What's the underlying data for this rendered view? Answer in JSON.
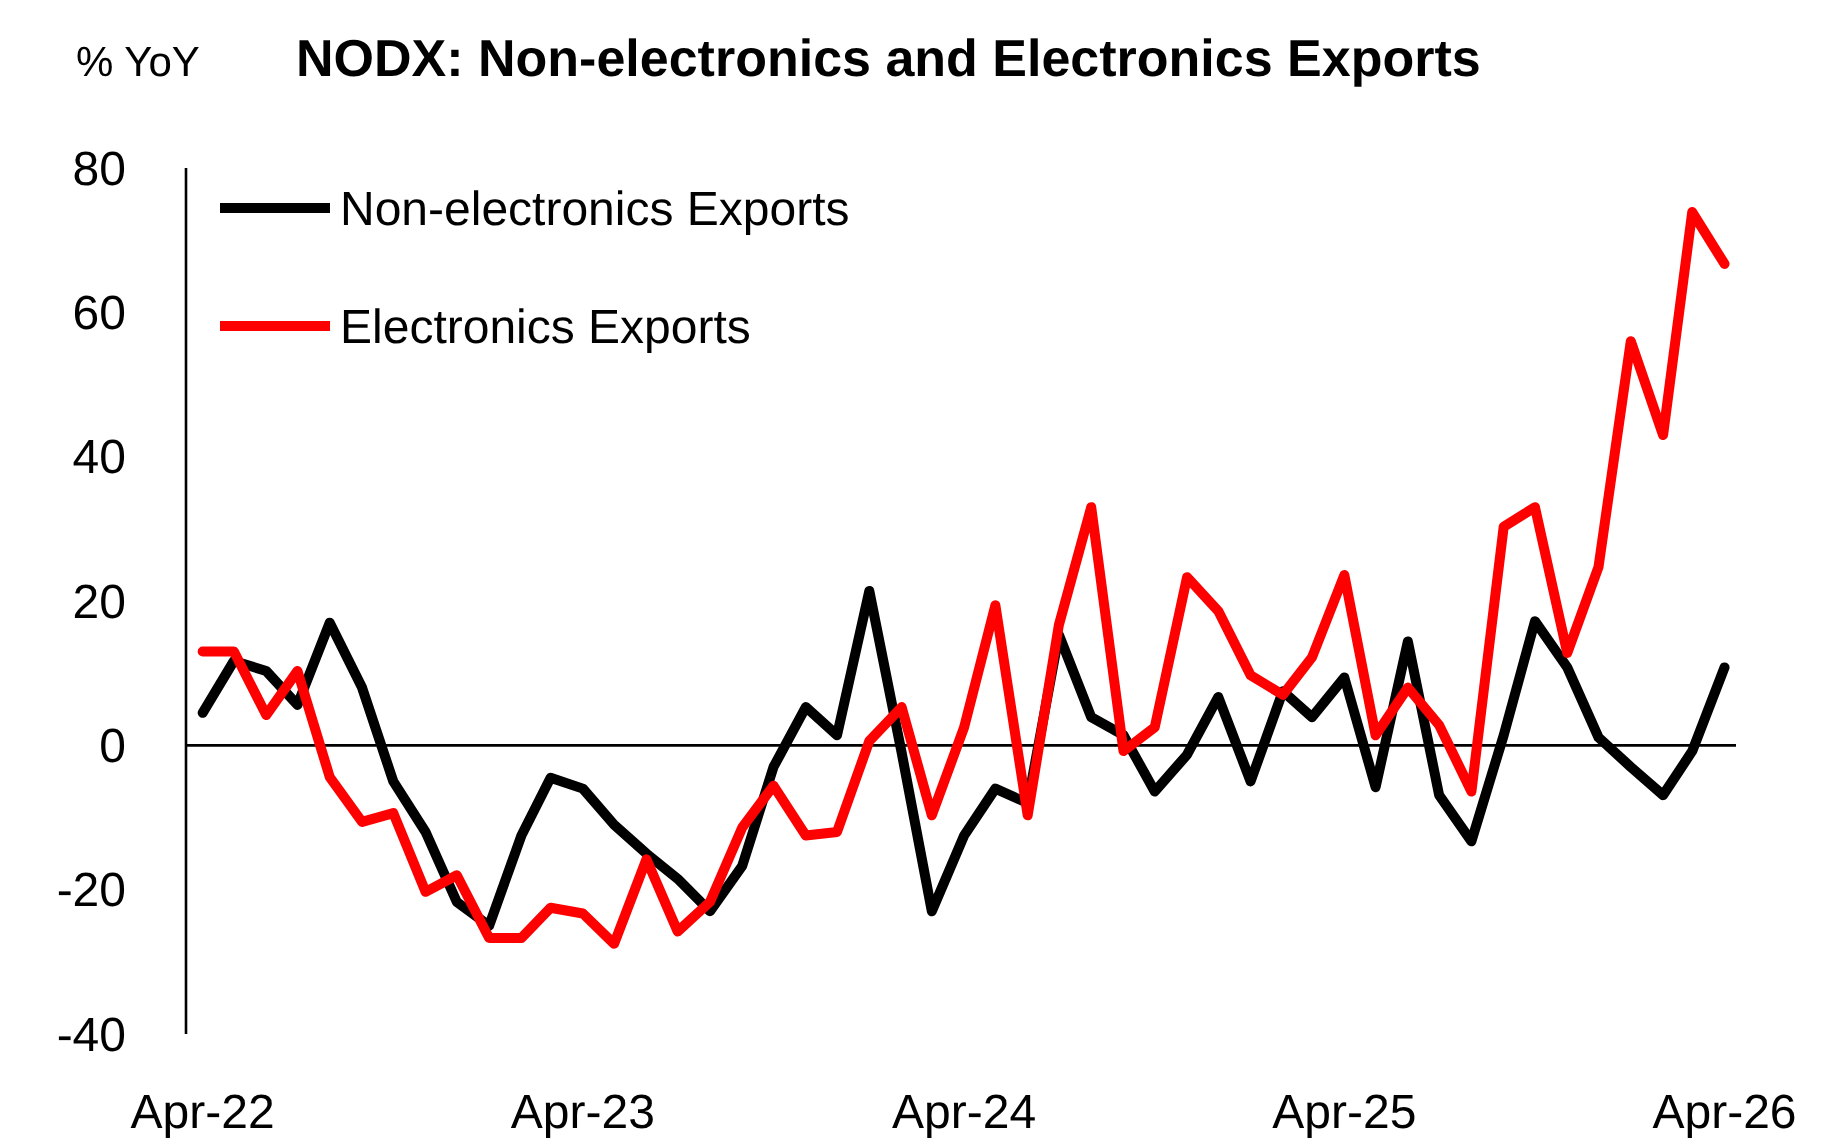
{
  "chart_data": {
    "type": "line",
    "title": "NODX: Non-electronics and Electronics Exports",
    "ylabel": "% YoY",
    "x": [
      "2022-04",
      "2022-05",
      "2022-06",
      "2022-07",
      "2022-08",
      "2022-09",
      "2022-10",
      "2022-11",
      "2022-12",
      "2023-01",
      "2023-02",
      "2023-03",
      "2023-04",
      "2023-05",
      "2023-06",
      "2023-07",
      "2023-08",
      "2023-09",
      "2023-10",
      "2023-11",
      "2023-12",
      "2024-01",
      "2024-02",
      "2024-03",
      "2024-04",
      "2024-05",
      "2024-06",
      "2024-07",
      "2024-08",
      "2024-09",
      "2024-10",
      "2024-11",
      "2024-12",
      "2025-01",
      "2025-02",
      "2025-03",
      "2025-04",
      "2025-05",
      "2025-06",
      "2025-07",
      "2025-08",
      "2025-09",
      "2025-10",
      "2025-11",
      "2025-12",
      "2026-01",
      "2026-02",
      "2026-03",
      "2026-04"
    ],
    "series": [
      {
        "name": "Non-electronics Exports",
        "color": "#000000",
        "values": [
          4.5,
          11.7,
          10.3,
          5.6,
          17,
          8,
          -5,
          -12,
          -21.7,
          -25,
          -12.5,
          -4.5,
          -6,
          -11,
          -15,
          -18.5,
          -23,
          -16.7,
          -3,
          5.3,
          1.4,
          21.4,
          -1,
          -23,
          -12.5,
          -6,
          -8,
          15.3,
          3.9,
          1.4,
          -6.4,
          -1.3,
          6.7,
          -5,
          7.5,
          3.9,
          9.4,
          -5.8,
          14.4,
          -6.9,
          -13.3,
          1.4,
          17.2,
          10.8,
          1.1,
          -3,
          -6.9,
          -0.8,
          10.8
        ]
      },
      {
        "name": "Electronics Exports",
        "color": "#ff0000",
        "values": [
          13,
          13,
          4.2,
          10.3,
          -4.4,
          -10.6,
          -9.4,
          -20.3,
          -18,
          -26.7,
          -26.7,
          -22.5,
          -23.3,
          -27.5,
          -15.8,
          -25.8,
          -21.7,
          -11.4,
          -5.6,
          -12.5,
          -12,
          0.6,
          5.3,
          -9.7,
          2.5,
          19.4,
          -9.7,
          16.7,
          33,
          -0.8,
          2.5,
          23.3,
          18.6,
          9.7,
          7,
          12.2,
          23.6,
          1.4,
          8,
          2.8,
          -6.4,
          30.3,
          33,
          12.8,
          24.7,
          56,
          43,
          73.9,
          66.7
        ]
      }
    ],
    "xlim": [
      "2022-03-16",
      "2026-04-12"
    ],
    "xticks": [
      {
        "value": "2022-04",
        "label": "Apr-22"
      },
      {
        "value": "2023-04",
        "label": "Apr-23"
      },
      {
        "value": "2024-04",
        "label": "Apr-24"
      },
      {
        "value": "2025-04",
        "label": "Apr-25"
      },
      {
        "value": "2026-04",
        "label": "Apr-26"
      }
    ],
    "ylim": [
      -40,
      80
    ],
    "yticks": [
      -40,
      -20,
      0,
      20,
      40,
      60,
      80
    ],
    "ref_lines": [
      {
        "axis": "y",
        "value": 0,
        "color": "#000000"
      }
    ],
    "legend": "top left",
    "marker": "none",
    "line_style": "solid"
  }
}
